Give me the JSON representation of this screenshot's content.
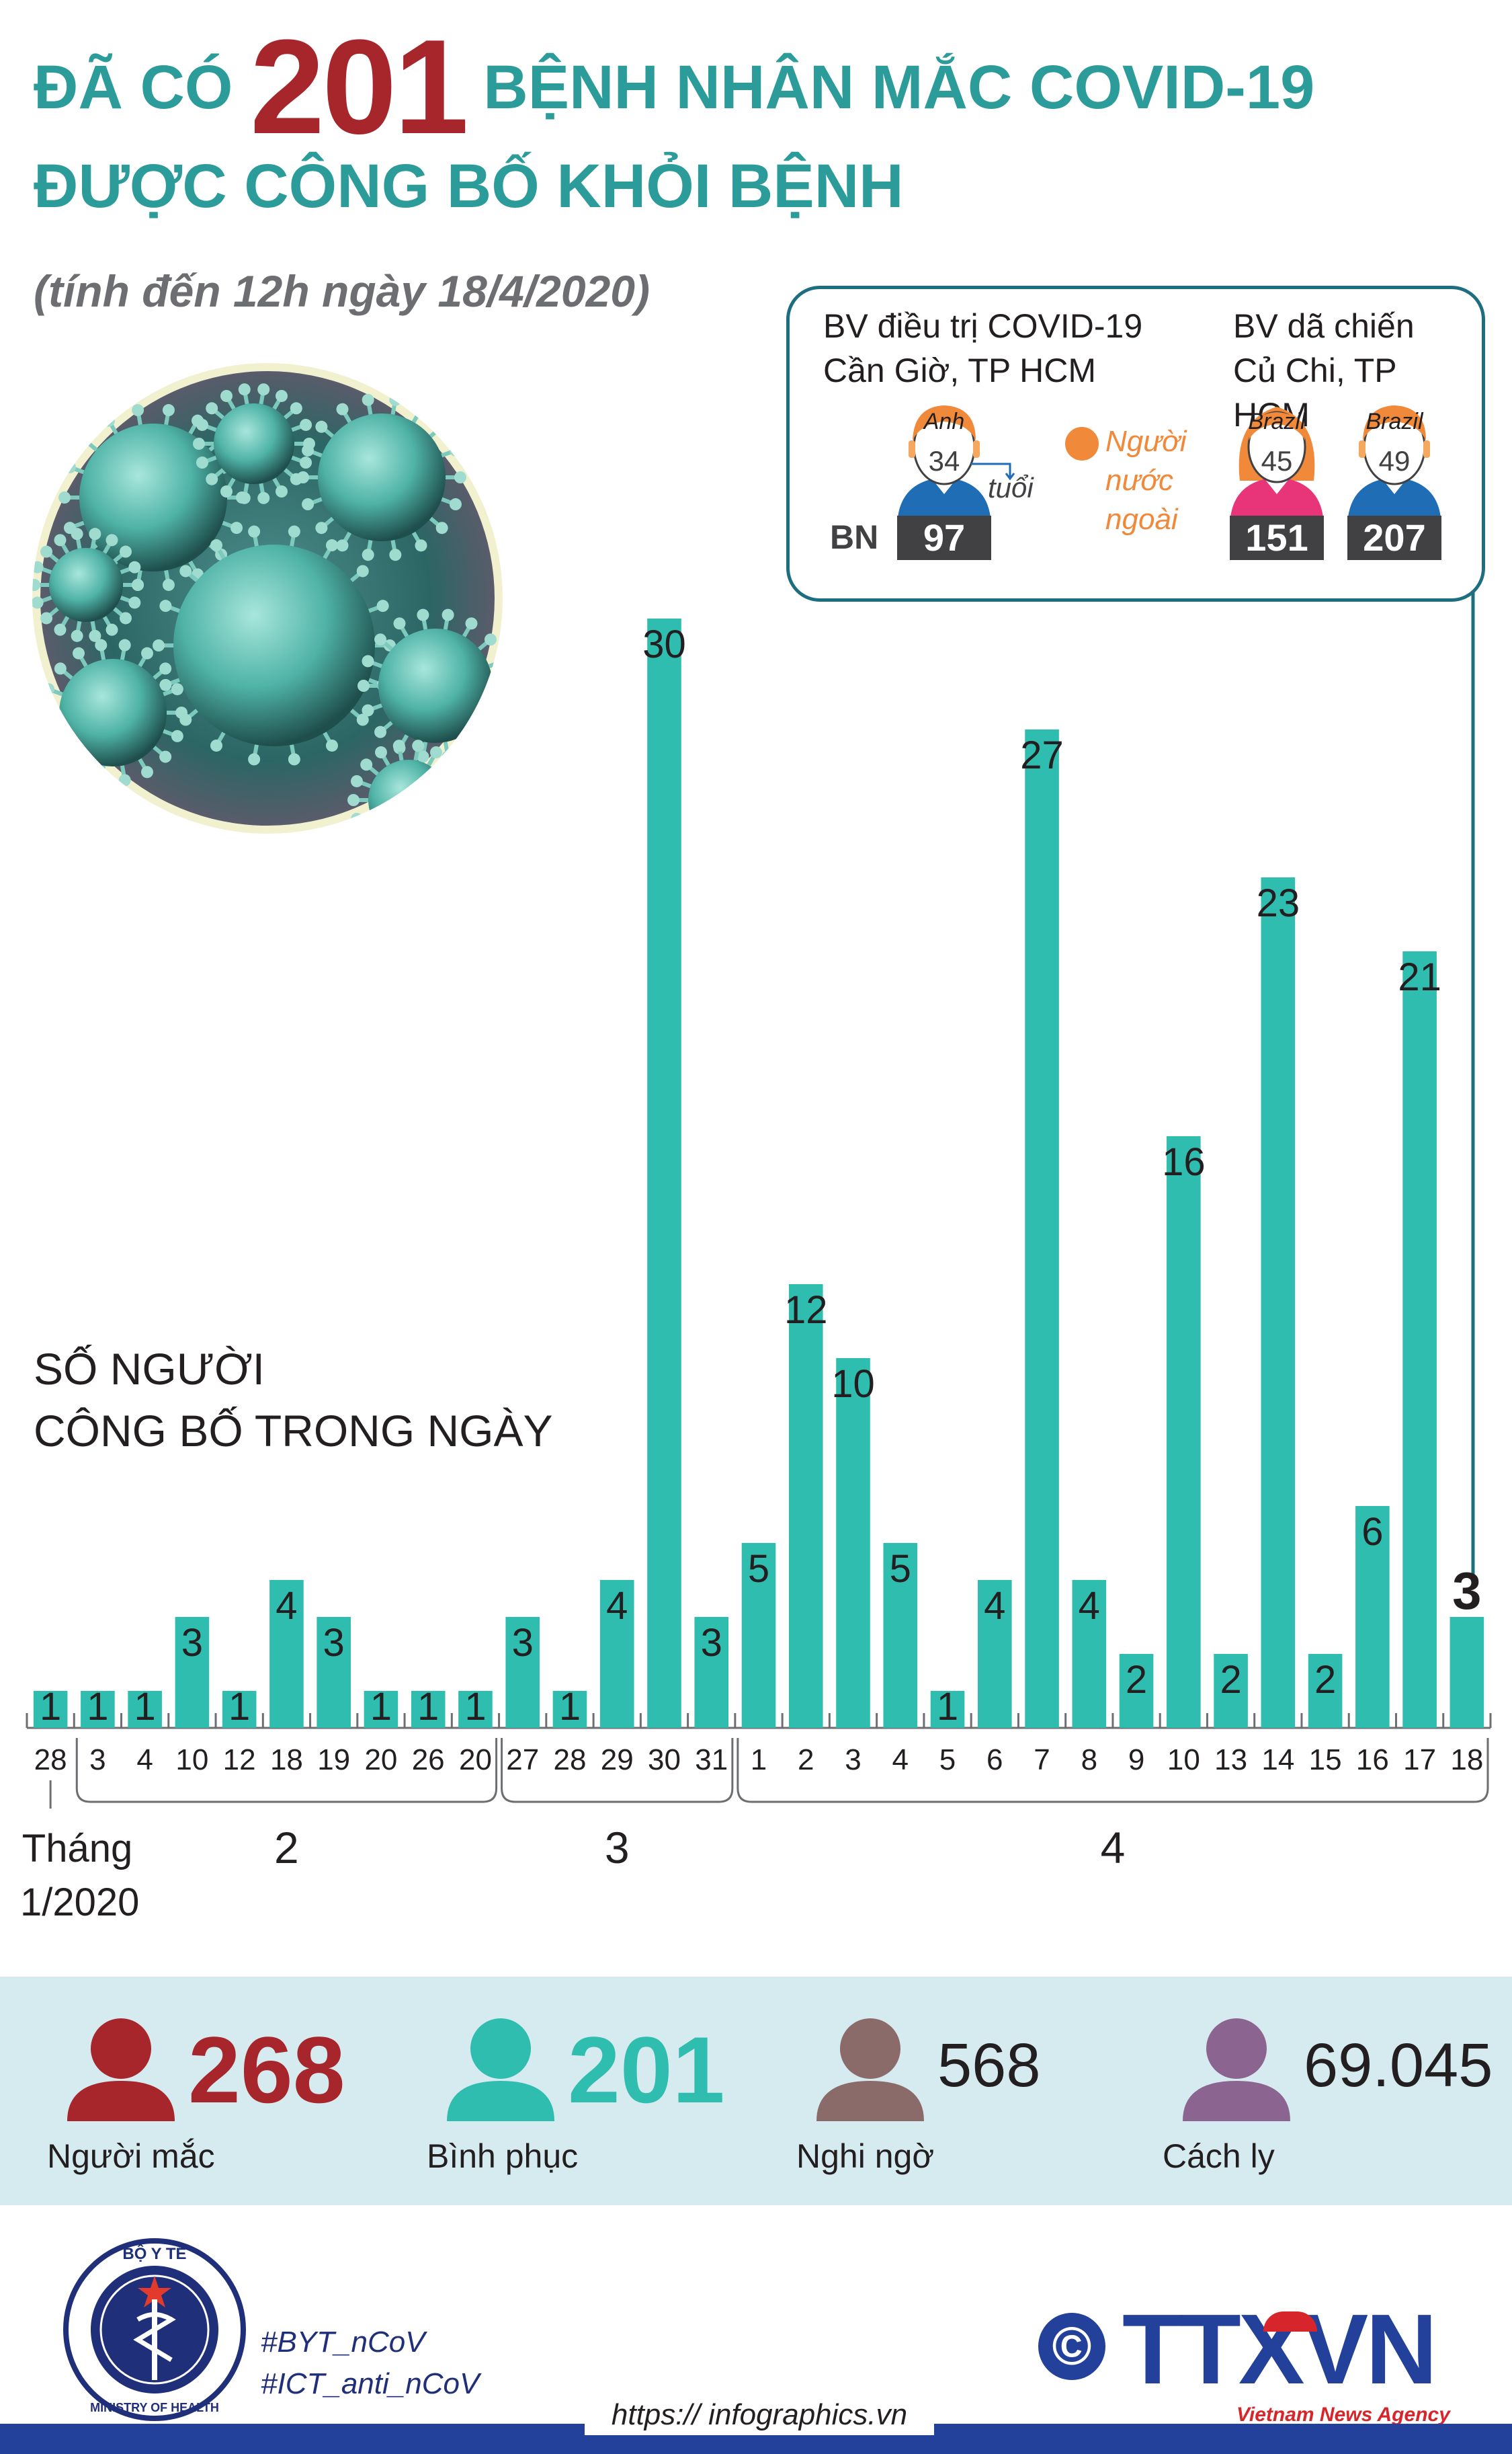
{
  "header": {
    "title_prefix": "ĐÃ CÓ",
    "title_number": "201",
    "title_suffix": "BỆNH NHÂN MẮC COVID-19",
    "title_line2": "ĐƯỢC CÔNG BỐ KHỎI BỆNH",
    "subtitle": "(tính đến 12h ngày 18/4/2020)"
  },
  "info_box": {
    "hospital1": [
      "BV điều trị COVID-19",
      "Cần Giờ, TP HCM"
    ],
    "hospital2": [
      "BV dã chiến",
      "Củ Chi, TP HCM"
    ],
    "bn_label": "BN",
    "patients": [
      {
        "nationality": "Anh",
        "age": "34",
        "bn": "97"
      },
      {
        "nationality": "Brazil",
        "age": "45",
        "bn": "151"
      },
      {
        "nationality": "Brazil",
        "age": "49",
        "bn": "207"
      }
    ],
    "age_unit": "tuổi",
    "foreigner_legend": [
      "Người",
      "nước",
      "ngoài"
    ]
  },
  "chart_label": [
    "SỐ NGƯỜI",
    "CÔNG BỐ TRONG NGÀY"
  ],
  "month_labels": {
    "first": [
      "Tháng",
      "1/2020"
    ],
    "groups": [
      {
        "label": "2",
        "from": 1,
        "to": 9
      },
      {
        "label": "3",
        "from": 10,
        "to": 14
      },
      {
        "label": "4",
        "from": 15,
        "to": 30
      }
    ]
  },
  "chart_data": {
    "type": "bar",
    "categories": [
      "28",
      "3",
      "4",
      "10",
      "12",
      "18",
      "19",
      "20",
      "26",
      "20",
      "27",
      "28",
      "29",
      "30",
      "31",
      "1",
      "2",
      "3",
      "4",
      "5",
      "6",
      "7",
      "8",
      "9",
      "10",
      "13",
      "14",
      "15",
      "16",
      "17",
      "18"
    ],
    "values": [
      1,
      1,
      1,
      3,
      1,
      4,
      3,
      1,
      1,
      1,
      3,
      1,
      4,
      30,
      3,
      5,
      12,
      10,
      5,
      1,
      4,
      27,
      4,
      2,
      16,
      2,
      23,
      2,
      6,
      21,
      3
    ],
    "title": "",
    "xlabel": "",
    "ylabel": "",
    "ylim": [
      0,
      30
    ],
    "highlight_last": true,
    "colors": {
      "bar": "#2ebdae",
      "label": "#231f20"
    }
  },
  "stats": [
    {
      "value": "268",
      "label": "Người mắc",
      "color": "#a6262b",
      "bold": true
    },
    {
      "value": "201",
      "label": "Bình phục",
      "color": "#2ebdae",
      "bold": true
    },
    {
      "value": "568",
      "label": "Nghi ngờ",
      "color": "#231f20",
      "bold": false,
      "icon_color": "#8b6a6a"
    },
    {
      "value": "69.045",
      "label": "Cách ly",
      "color": "#231f20",
      "bold": false,
      "icon_color": "#8b6590"
    }
  ],
  "footer": {
    "hashtags": [
      "#BYT_nCoV",
      "#ICT_anti_nCoV"
    ],
    "url": "https:// infographics.vn",
    "copyright_symbol": "©",
    "agency_logo": "TTXVN",
    "agency_name": "Vietnam News Agency",
    "ministry_top": "BỘ Y TẾ",
    "ministry_bottom": "MINISTRY OF HEALTH"
  },
  "colors": {
    "teal": "#2b9c9a",
    "red": "#a6262b",
    "orange": "#f0893a",
    "navy": "#23419a",
    "box_border": "#1d6e80"
  }
}
